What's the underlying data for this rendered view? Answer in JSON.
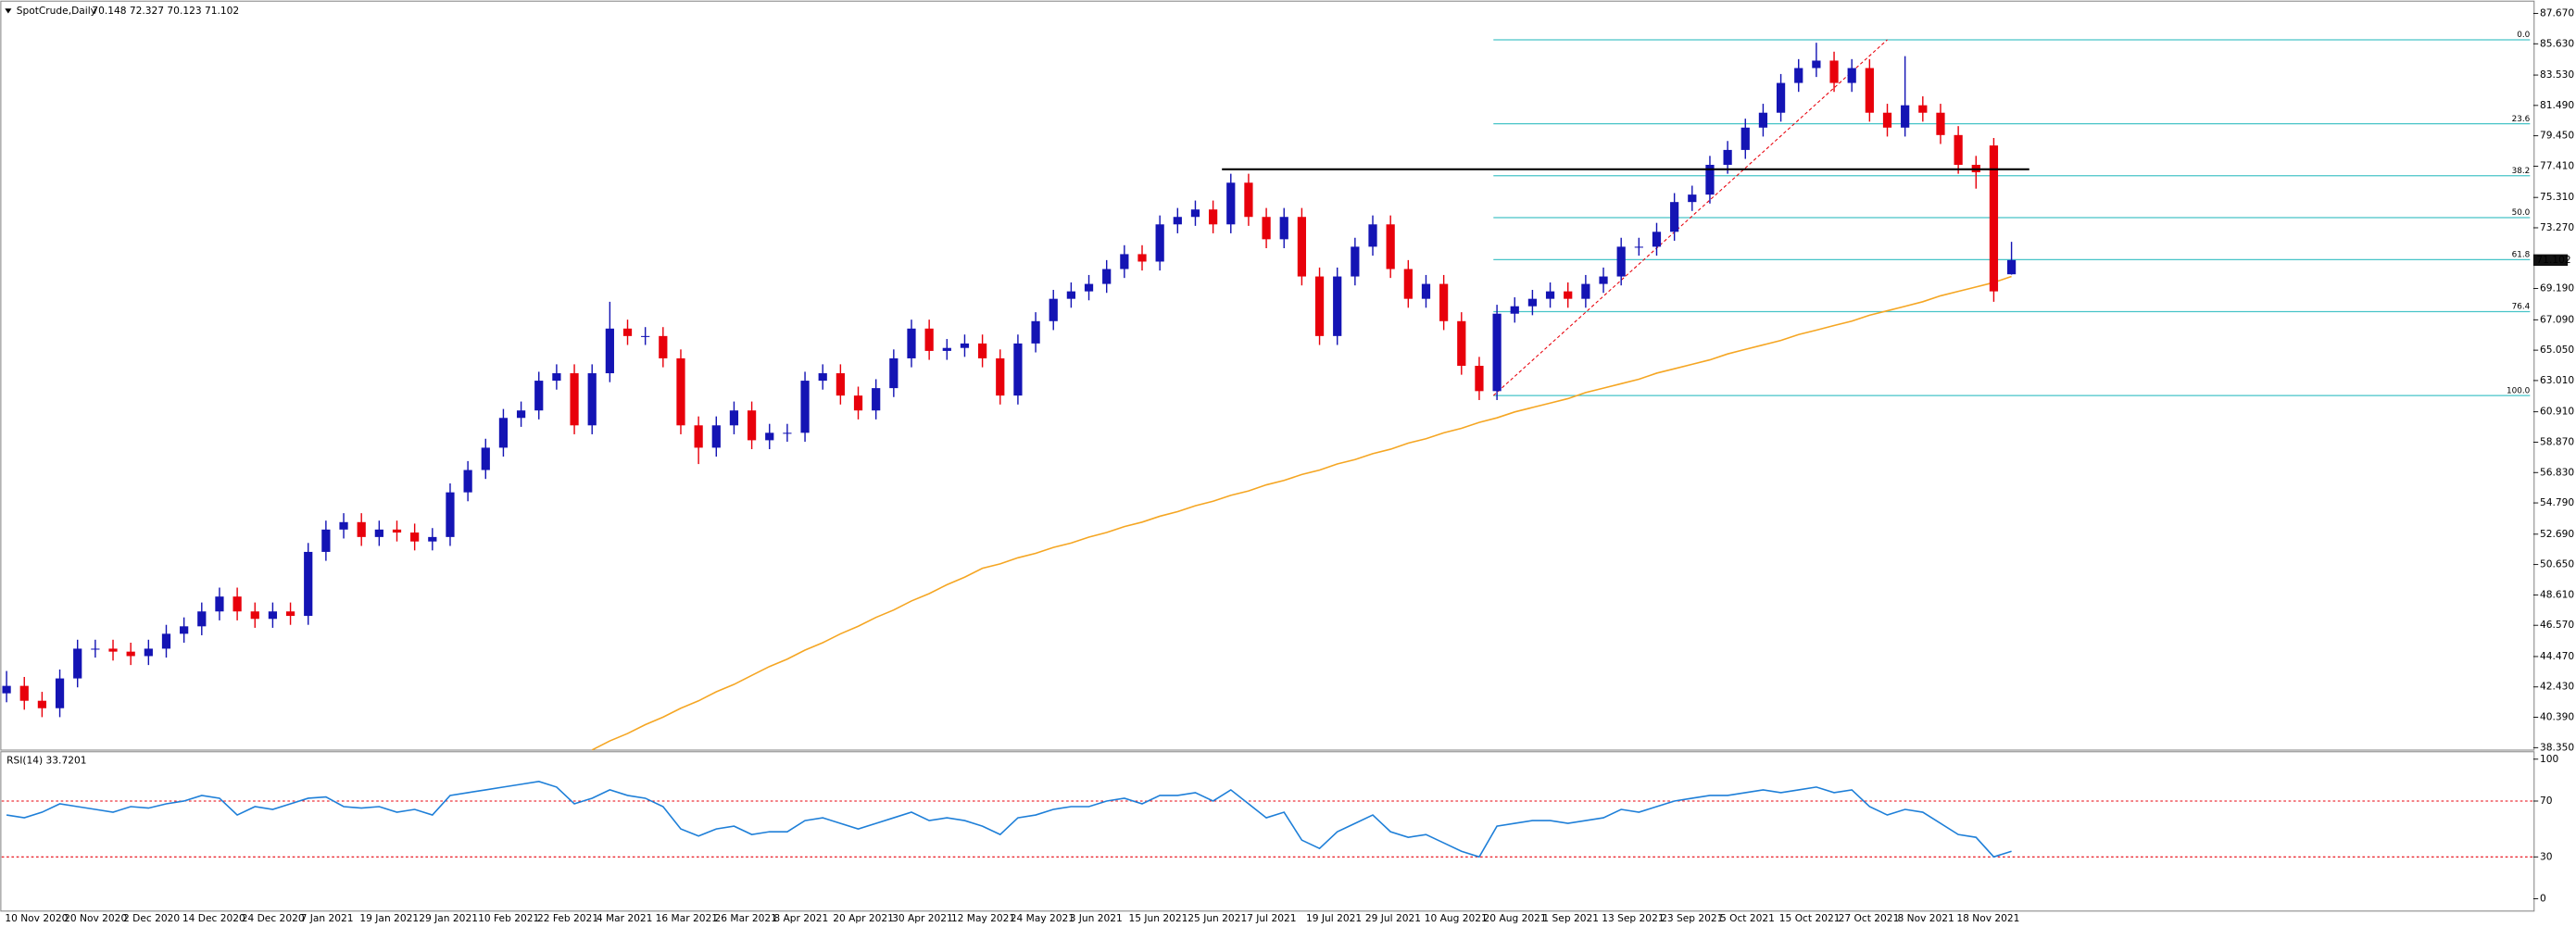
{
  "chart_data": [
    {
      "type": "candlestick",
      "title": "SpotCrude,Daily",
      "header_values": "70.148 72.327 70.123 71.102",
      "ylim": [
        38.24,
        88.55
      ],
      "yticks": [
        {
          "value": 87.67,
          "label": "87.670"
        },
        {
          "value": 85.63,
          "label": "85.630"
        },
        {
          "value": 83.53,
          "label": "83.530"
        },
        {
          "value": 81.49,
          "label": "81.490"
        },
        {
          "value": 79.45,
          "label": "79.450"
        },
        {
          "value": 77.41,
          "label": "77.410"
        },
        {
          "value": 75.31,
          "label": "75.310"
        },
        {
          "value": 73.27,
          "label": "73.270"
        },
        {
          "value": 69.19,
          "label": "69.190"
        },
        {
          "value": 67.09,
          "label": "67.090"
        },
        {
          "value": 65.05,
          "label": "65.050"
        },
        {
          "value": 63.01,
          "label": "63.010"
        },
        {
          "value": 60.91,
          "label": "60.910"
        },
        {
          "value": 58.87,
          "label": "58.870"
        },
        {
          "value": 56.83,
          "label": "56.830"
        },
        {
          "value": 54.79,
          "label": "54.790"
        },
        {
          "value": 52.69,
          "label": "52.690"
        },
        {
          "value": 50.65,
          "label": "50.650"
        },
        {
          "value": 48.61,
          "label": "48.610"
        },
        {
          "value": 46.57,
          "label": "46.570"
        },
        {
          "value": 44.47,
          "label": "44.470"
        },
        {
          "value": 42.43,
          "label": "42.430"
        },
        {
          "value": 40.39,
          "label": "40.390"
        },
        {
          "value": 38.35,
          "label": "38.350"
        }
      ],
      "x_labels": [
        "10 Nov 2020",
        "20 Nov 2020",
        "2 Dec 2020",
        "14 Dec 2020",
        "24 Dec 2020",
        "7 Jan 2021",
        "19 Jan 2021",
        "29 Jan 2021",
        "10 Feb 2021",
        "22 Feb 2021",
        "4 Mar 2021",
        "16 Mar 2021",
        "26 Mar 2021",
        "8 Apr 2021",
        "20 Apr 2021",
        "30 Apr 2021",
        "12 May 2021",
        "24 May 2021",
        "3 Jun 2021",
        "15 Jun 2021",
        "25 Jun 2021",
        "7 Jul 2021",
        "19 Jul 2021",
        "29 Jul 2021",
        "10 Aug 2021",
        "20 Aug 2021",
        "1 Sep 2021",
        "13 Sep 2021",
        "23 Sep 2021",
        "5 Oct 2021",
        "15 Oct 2021",
        "27 Oct 2021",
        "8 Nov 2021",
        "18 Nov 2021"
      ],
      "up_color": "#1414b4",
      "down_color": "#e8000b",
      "open": [
        42,
        42.5,
        41.5,
        41,
        43,
        45,
        45,
        44.8,
        44.5,
        45,
        46,
        46.5,
        47.5,
        48.5,
        47.5,
        47,
        47.5,
        47.2,
        51.5,
        53,
        53.5,
        52.5,
        53,
        52.8,
        52.2,
        52.5,
        55.5,
        57,
        58.5,
        60.5,
        61,
        63,
        63.5,
        60,
        63.5,
        66.5,
        66,
        66,
        64.5,
        60,
        58.5,
        60,
        61,
        59,
        59.5,
        59.5,
        63,
        63.5,
        62,
        61,
        62.5,
        64.5,
        66.5,
        65,
        65.2,
        65.5,
        64.5,
        62,
        65.5,
        67,
        68.5,
        69,
        69.5,
        70.5,
        71.5,
        71,
        73.5,
        74,
        74.5,
        73.5,
        76.3,
        74,
        72.5,
        74,
        70,
        66,
        70,
        72,
        73.5,
        70.5,
        68.5,
        69.5,
        67,
        64,
        62.3,
        67.5,
        68,
        68.5,
        69,
        68.5,
        69.5,
        70,
        72,
        72,
        73,
        75,
        75.5,
        77.5,
        78.5,
        80,
        81,
        83,
        84,
        84.5,
        83,
        84,
        81,
        80,
        81.5,
        81,
        79.5,
        77.5,
        78.8,
        70.148
      ],
      "high": [
        43.5,
        43.1,
        42.1,
        43.6,
        45.6,
        45.6,
        45.6,
        45.4,
        45.6,
        46.6,
        47.1,
        48.1,
        49.1,
        49.1,
        48.1,
        48.1,
        48.1,
        52.1,
        53.6,
        54.1,
        54.1,
        53.6,
        53.6,
        53.4,
        53.1,
        56.1,
        57.6,
        59.1,
        61.1,
        61.6,
        63.6,
        64.1,
        64.1,
        64.1,
        68.3,
        67.1,
        66.6,
        66.6,
        65.1,
        60.6,
        60.6,
        61.6,
        61.6,
        60.1,
        60.1,
        63.6,
        64.1,
        64.1,
        62.6,
        63.1,
        65.1,
        67.1,
        67.1,
        65.8,
        66.1,
        66.1,
        65.1,
        66.1,
        67.6,
        69.1,
        69.6,
        70.1,
        71.1,
        72.1,
        72.1,
        74.1,
        74.6,
        75.1,
        75.1,
        76.9,
        76.9,
        74.6,
        74.6,
        74.6,
        70.6,
        70.6,
        72.6,
        74.1,
        74.1,
        71.1,
        70.1,
        70.1,
        67.6,
        64.6,
        68.1,
        68.6,
        69.1,
        69.6,
        69.6,
        70.1,
        70.6,
        72.6,
        72.6,
        73.6,
        75.6,
        76.1,
        78.1,
        79.1,
        80.6,
        81.6,
        83.6,
        84.6,
        85.7,
        85.1,
        84.6,
        84.6,
        81.6,
        84.8,
        82.1,
        81.6,
        80.1,
        78.1,
        79.3,
        72.327
      ],
      "low": [
        41.4,
        40.9,
        40.4,
        40.4,
        42.4,
        44.4,
        44.2,
        43.9,
        43.9,
        44.4,
        45.4,
        45.9,
        46.9,
        46.9,
        46.4,
        46.4,
        46.6,
        46.6,
        50.9,
        52.4,
        51.9,
        51.9,
        52.2,
        51.6,
        51.6,
        51.9,
        54.9,
        56.4,
        57.9,
        59.9,
        60.4,
        62.4,
        59.4,
        59.4,
        62.9,
        65.4,
        65.4,
        63.9,
        59.4,
        57.4,
        57.9,
        59.4,
        58.4,
        58.4,
        58.9,
        58.9,
        62.4,
        61.4,
        60.4,
        60.4,
        61.9,
        63.9,
        64.4,
        64.4,
        64.6,
        63.9,
        61.4,
        61.4,
        64.9,
        66.4,
        67.9,
        68.4,
        68.9,
        69.9,
        70.4,
        70.4,
        72.9,
        73.4,
        72.9,
        72.9,
        73.4,
        71.9,
        71.9,
        69.4,
        65.4,
        65.4,
        69.4,
        71.4,
        69.9,
        67.9,
        67.9,
        66.4,
        63.4,
        61.7,
        61.7,
        66.9,
        67.4,
        67.9,
        67.9,
        67.9,
        68.9,
        69.4,
        71.4,
        71.4,
        72.4,
        74.4,
        74.9,
        76.9,
        77.9,
        79.4,
        80.4,
        82.4,
        83.4,
        82.4,
        82.4,
        80.4,
        79.4,
        79.4,
        80.4,
        78.9,
        76.9,
        75.9,
        68.3,
        70.123
      ],
      "close": [
        42.5,
        41.5,
        41,
        43,
        45,
        45,
        44.8,
        44.5,
        45,
        46,
        46.5,
        47.5,
        48.5,
        47.5,
        47,
        47.5,
        47.2,
        51.5,
        53,
        53.5,
        52.5,
        53,
        52.8,
        52.2,
        52.5,
        55.5,
        57,
        58.5,
        60.5,
        61,
        63,
        63.5,
        60,
        63.5,
        66.5,
        66,
        66,
        64.5,
        60,
        58.5,
        60,
        61,
        59,
        59.5,
        59.5,
        63,
        63.5,
        62,
        61,
        62.5,
        64.5,
        66.5,
        65,
        65.2,
        65.5,
        64.5,
        62,
        65.5,
        67,
        68.5,
        69,
        69.5,
        70.5,
        71.5,
        71,
        73.5,
        74,
        74.5,
        73.5,
        76.3,
        74,
        72.5,
        74,
        70,
        66,
        70,
        72,
        73.5,
        70.5,
        68.5,
        69.5,
        67,
        64,
        62.3,
        67.5,
        68,
        68.5,
        69,
        68.5,
        69.5,
        70,
        72,
        72,
        73,
        75,
        75.5,
        77.5,
        78.5,
        80,
        81,
        83,
        84,
        84.5,
        83,
        84,
        81,
        80,
        81.5,
        81,
        79.5,
        77.5,
        77,
        69,
        71.102
      ],
      "moving_average": {
        "color": "#f5a623",
        "values": [
          null,
          null,
          null,
          null,
          null,
          null,
          null,
          null,
          null,
          null,
          null,
          null,
          null,
          null,
          null,
          null,
          null,
          null,
          null,
          null,
          null,
          null,
          null,
          null,
          null,
          null,
          null,
          null,
          null,
          null,
          null,
          null,
          null,
          38.2,
          38.8,
          39.3,
          39.9,
          40.4,
          41.0,
          41.5,
          42.1,
          42.6,
          43.2,
          43.8,
          44.3,
          44.9,
          45.4,
          46.0,
          46.5,
          47.1,
          47.6,
          48.2,
          48.7,
          49.3,
          49.8,
          50.4,
          50.7,
          51.1,
          51.4,
          51.8,
          52.1,
          52.5,
          52.8,
          53.2,
          53.5,
          53.9,
          54.2,
          54.6,
          54.9,
          55.3,
          55.6,
          56.0,
          56.3,
          56.7,
          57.0,
          57.4,
          57.7,
          58.1,
          58.4,
          58.8,
          59.1,
          59.5,
          59.8,
          60.2,
          60.5,
          60.9,
          61.2,
          61.5,
          61.8,
          62.2,
          62.5,
          62.8,
          63.1,
          63.5,
          63.8,
          64.1,
          64.4,
          64.8,
          65.1,
          65.4,
          65.7,
          66.1,
          66.4,
          66.7,
          67.0,
          67.4,
          67.7,
          68.0,
          68.3,
          68.7,
          69.0,
          69.3,
          69.6,
          70.0
        ]
      },
      "fibonacci": {
        "color": "#47c4c8",
        "x": [
          83.8,
          106
        ],
        "y": [
          62.0,
          85.9
        ],
        "levels": [
          {
            "value": 85.9,
            "label": "0.0"
          },
          {
            "value": 80.26,
            "label": "23.6"
          },
          {
            "value": 76.77,
            "label": "38.2"
          },
          {
            "value": 73.95,
            "label": "50.0"
          },
          {
            "value": 71.13,
            "label": "61.8"
          },
          {
            "value": 67.64,
            "label": "76.4"
          },
          {
            "value": 62.0,
            "label": "100.0"
          }
        ]
      },
      "resistance": {
        "value": 77.2,
        "x": [
          68.5,
          114
        ],
        "color": "#000000"
      },
      "price_label": {
        "value": 71.102,
        "label": "71.102"
      }
    },
    {
      "type": "line",
      "title": "RSI(14) 33.7201",
      "color": "#1e7fd8",
      "ylim": [
        -9.4,
        105.9
      ],
      "yticks": [
        100,
        70,
        30,
        0
      ],
      "levels": [
        70,
        30
      ],
      "values": [
        60,
        58,
        62,
        68,
        66,
        64,
        62,
        66,
        65,
        68,
        70,
        74,
        72,
        60,
        66,
        64,
        68,
        72,
        73,
        66,
        65,
        66,
        62,
        64,
        60,
        74,
        76,
        78,
        80,
        82,
        84,
        80,
        68,
        72,
        78,
        74,
        72,
        66,
        50,
        45,
        50,
        52,
        46,
        48,
        48,
        56,
        58,
        54,
        50,
        54,
        58,
        62,
        56,
        58,
        56,
        52,
        46,
        58,
        60,
        64,
        66,
        66,
        70,
        72,
        68,
        74,
        74,
        76,
        70,
        78,
        68,
        58,
        62,
        42,
        36,
        48,
        54,
        60,
        48,
        44,
        46,
        40,
        34,
        30,
        52,
        54,
        56,
        56,
        54,
        56,
        58,
        64,
        62,
        66,
        70,
        72,
        74,
        74,
        76,
        78,
        76,
        78,
        80,
        76,
        78,
        66,
        60,
        64,
        62,
        54,
        46,
        44,
        30,
        34
      ]
    }
  ]
}
